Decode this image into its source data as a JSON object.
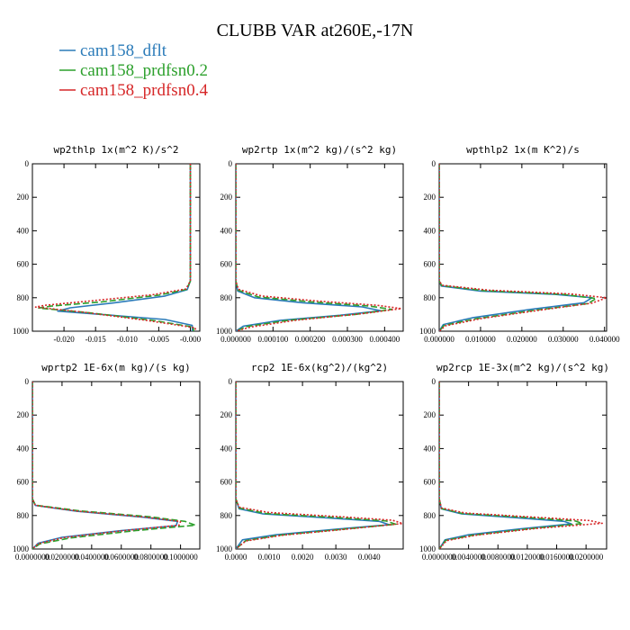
{
  "figure": {
    "title": "CLUBB VAR at260E,-17N"
  },
  "colors": {
    "cam158_dflt": "#2b7bb9",
    "cam158_prdfsn0.2": "#2ca02c",
    "cam158_prdfsn0.4": "#d62728"
  },
  "legend": [
    {
      "label": "cam158_dflt",
      "color": "#2b7bb9",
      "dash": "solid"
    },
    {
      "label": "cam158_prdfsn0.2",
      "color": "#2ca02c",
      "dash": "dashed"
    },
    {
      "label": "cam158_prdfsn0.4",
      "color": "#d62728",
      "dash": "dotted"
    }
  ],
  "chart_data": [
    {
      "type": "line",
      "title": "wp2thlp  1x(m^2 K)/s^2",
      "xlim": [
        -0.025,
        0.0015
      ],
      "ylim": [
        0,
        1000
      ],
      "xticks": [
        "-0.020",
        "-0.015",
        "-0.010",
        "-0.005",
        "-0.000"
      ],
      "xtick_values": [
        -0.02,
        -0.015,
        -0.01,
        -0.005,
        0.0
      ],
      "yticks": [
        "0",
        "200",
        "400",
        "600",
        "800",
        "1000"
      ],
      "series": [
        {
          "name": "cam158_dflt",
          "x": [
            0,
            0,
            0,
            -0.0005,
            -0.004,
            -0.012,
            -0.019,
            -0.021,
            -0.014,
            -0.004,
            0.0003,
            0.0003
          ],
          "y": [
            0,
            300,
            700,
            752,
            790,
            830,
            860,
            880,
            900,
            930,
            965,
            1000
          ]
        },
        {
          "name": "cam158_prdfsn0.2",
          "x": [
            0,
            0,
            0,
            -0.0006,
            -0.005,
            -0.014,
            -0.022,
            -0.024,
            -0.016,
            -0.006,
            0.0005,
            0.0005
          ],
          "y": [
            0,
            300,
            700,
            750,
            785,
            825,
            850,
            862,
            890,
            935,
            975,
            1000
          ]
        },
        {
          "name": "cam158_prdfsn0.4",
          "x": [
            0,
            0,
            0,
            -0.0007,
            -0.006,
            -0.016,
            -0.023,
            -0.0245,
            -0.017,
            -0.007,
            0.0008,
            0.0008
          ],
          "y": [
            0,
            300,
            700,
            748,
            782,
            820,
            845,
            856,
            886,
            935,
            980,
            1000
          ]
        }
      ]
    },
    {
      "type": "line",
      "title": "wp2rtp  1x(m^2 kg)/(s^2 kg)",
      "xlim": [
        0,
        0.00045
      ],
      "ylim": [
        0,
        1000
      ],
      "xticks": [
        "0.000000",
        "0.000100",
        "0.000200",
        "0.000300",
        "0.000400"
      ],
      "xtick_values": [
        0,
        0.0001,
        0.0002,
        0.0003,
        0.0004
      ],
      "yticks": [
        "0",
        "200",
        "400",
        "600",
        "800",
        "1000"
      ],
      "series": [
        {
          "name": "cam158_dflt",
          "x": [
            0,
            0,
            0,
            5e-06,
            5e-05,
            0.00018,
            0.00034,
            0.00039,
            0.00028,
            0.00012,
            2e-05,
            0
          ],
          "y": [
            0,
            300,
            700,
            760,
            800,
            830,
            855,
            878,
            905,
            935,
            970,
            1000
          ]
        },
        {
          "name": "cam158_prdfsn0.2",
          "x": [
            0,
            0,
            0,
            6e-06,
            6e-05,
            0.0002,
            0.00036,
            0.00042,
            0.00032,
            0.00014,
            3e-05,
            0
          ],
          "y": [
            0,
            300,
            700,
            755,
            795,
            825,
            850,
            870,
            900,
            935,
            972,
            1000
          ]
        },
        {
          "name": "cam158_prdfsn0.4",
          "x": [
            0,
            0,
            0,
            7e-06,
            7e-05,
            0.00022,
            0.00038,
            0.000445,
            0.00034,
            0.00016,
            4e-05,
            0
          ],
          "y": [
            0,
            300,
            700,
            750,
            790,
            820,
            845,
            865,
            895,
            935,
            975,
            1000
          ]
        }
      ]
    },
    {
      "type": "line",
      "title": "wpthlp2  1x(m K^2)/s",
      "xlim": [
        0,
        0.0405
      ],
      "ylim": [
        0,
        1000
      ],
      "xticks": [
        "0.000000",
        "0.010000",
        "0.020000",
        "0.030000",
        "0.040000"
      ],
      "xtick_values": [
        0,
        0.01,
        0.02,
        0.03,
        0.04
      ],
      "yticks": [
        "0",
        "200",
        "400",
        "600",
        "800",
        "1000"
      ],
      "series": [
        {
          "name": "cam158_dflt",
          "x": [
            0,
            0,
            0,
            0.0005,
            0.01,
            0.028,
            0.037,
            0.035,
            0.022,
            0.008,
            0.001,
            0
          ],
          "y": [
            0,
            300,
            700,
            730,
            760,
            780,
            800,
            830,
            870,
            920,
            960,
            1000
          ]
        },
        {
          "name": "cam158_prdfsn0.2",
          "x": [
            0,
            0,
            0,
            0.0006,
            0.011,
            0.03,
            0.038,
            0.036,
            0.023,
            0.009,
            0.0012,
            0
          ],
          "y": [
            0,
            300,
            700,
            728,
            758,
            780,
            805,
            835,
            875,
            925,
            965,
            1000
          ]
        },
        {
          "name": "cam158_prdfsn0.4",
          "x": [
            0,
            0,
            0,
            0.0007,
            0.012,
            0.032,
            0.0405,
            0.037,
            0.024,
            0.01,
            0.0015,
            0
          ],
          "y": [
            0,
            300,
            700,
            725,
            755,
            778,
            800,
            832,
            875,
            925,
            968,
            1000
          ]
        }
      ]
    },
    {
      "type": "line",
      "title": "wprtp2  1E-6x(m kg)/(s kg)",
      "xlim": [
        0,
        0.113
      ],
      "ylim": [
        0,
        1000
      ],
      "xticks": [
        "0.0000000",
        "0.0200000",
        "0.0400000",
        "0.0600000",
        "0.0800000",
        "0.1000000"
      ],
      "xtick_values": [
        0,
        0.02,
        0.04,
        0.06,
        0.08,
        0.1
      ],
      "yticks": [
        "0",
        "200",
        "400",
        "600",
        "800",
        "1000"
      ],
      "series": [
        {
          "name": "cam158_dflt",
          "x": [
            0,
            0,
            0,
            0.002,
            0.03,
            0.075,
            0.098,
            0.097,
            0.06,
            0.02,
            0.004,
            0
          ],
          "y": [
            0,
            300,
            700,
            740,
            775,
            810,
            835,
            860,
            890,
            930,
            965,
            1000
          ]
        },
        {
          "name": "cam158_prdfsn0.2",
          "x": [
            0,
            0,
            0,
            0.002,
            0.032,
            0.08,
            0.103,
            0.11,
            0.07,
            0.025,
            0.005,
            0
          ],
          "y": [
            0,
            300,
            700,
            738,
            772,
            808,
            835,
            858,
            890,
            935,
            970,
            1000
          ]
        },
        {
          "name": "cam158_prdfsn0.4",
          "x": [
            0,
            0,
            0,
            0.002,
            0.031,
            0.077,
            0.1,
            0.099,
            0.062,
            0.021,
            0.004,
            0
          ],
          "y": [
            0,
            300,
            700,
            739,
            774,
            810,
            836,
            858,
            890,
            932,
            968,
            1000
          ]
        }
      ]
    },
    {
      "type": "line",
      "title": "rcp2  1E-6x(kg^2)/(kg^2)",
      "xlim": [
        0,
        0.00502
      ],
      "ylim": [
        0,
        1000
      ],
      "xticks": [
        "0.0000",
        "0.0010",
        "0.0020",
        "0.0030",
        "0.0040"
      ],
      "xtick_values": [
        0,
        0.001,
        0.002,
        0.003,
        0.004
      ],
      "yticks": [
        "0",
        "200",
        "400",
        "600",
        "800",
        "1000"
      ],
      "series": [
        {
          "name": "cam158_dflt",
          "x": [
            0,
            0,
            0,
            0.0001,
            0.0008,
            0.0028,
            0.0043,
            0.0046,
            0.0031,
            0.0012,
            0.0002,
            0
          ],
          "y": [
            0,
            300,
            700,
            760,
            790,
            815,
            835,
            855,
            880,
            915,
            945,
            1000
          ]
        },
        {
          "name": "cam158_prdfsn0.2",
          "x": [
            0,
            0,
            0,
            0.0001,
            0.0009,
            0.003,
            0.0045,
            0.0048,
            0.0033,
            0.0013,
            0.0003,
            0
          ],
          "y": [
            0,
            300,
            700,
            755,
            788,
            812,
            832,
            852,
            880,
            918,
            950,
            1000
          ]
        },
        {
          "name": "cam158_prdfsn0.4",
          "x": [
            0,
            0,
            0,
            0.0001,
            0.001,
            0.0032,
            0.0047,
            0.005,
            0.0035,
            0.0014,
            0.0003,
            0
          ],
          "y": [
            0,
            300,
            700,
            750,
            782,
            808,
            828,
            848,
            878,
            918,
            952,
            1000
          ]
        }
      ]
    },
    {
      "type": "line",
      "title": "wp2rcp  1E-3x(m^2 kg)/(s^2 kg)",
      "xlim": [
        0,
        0.0228
      ],
      "ylim": [
        0,
        1000
      ],
      "xticks": [
        "0.0000000",
        "0.0040000",
        "0.0080000",
        "0.0120000",
        "0.0160000",
        "0.0200000"
      ],
      "xtick_values": [
        0,
        0.004,
        0.008,
        0.012,
        0.016,
        0.02
      ],
      "yticks": [
        "0",
        "200",
        "400",
        "600",
        "800",
        "1000"
      ],
      "series": [
        {
          "name": "cam158_dflt",
          "x": [
            0,
            0,
            0,
            0.0003,
            0.003,
            0.011,
            0.017,
            0.018,
            0.011,
            0.004,
            0.0008,
            0
          ],
          "y": [
            0,
            300,
            700,
            760,
            790,
            815,
            835,
            850,
            880,
            915,
            945,
            1000
          ]
        },
        {
          "name": "cam158_prdfsn0.2",
          "x": [
            0,
            0,
            0,
            0.0003,
            0.0032,
            0.012,
            0.0185,
            0.0195,
            0.012,
            0.0045,
            0.0009,
            0
          ],
          "y": [
            0,
            300,
            700,
            758,
            788,
            812,
            832,
            848,
            880,
            918,
            948,
            1000
          ]
        },
        {
          "name": "cam158_prdfsn0.4",
          "x": [
            0,
            0,
            0,
            0.0003,
            0.0035,
            0.013,
            0.0205,
            0.0222,
            0.013,
            0.005,
            0.001,
            0
          ],
          "y": [
            0,
            300,
            700,
            755,
            785,
            810,
            830,
            846,
            878,
            918,
            950,
            1000
          ]
        }
      ]
    }
  ]
}
